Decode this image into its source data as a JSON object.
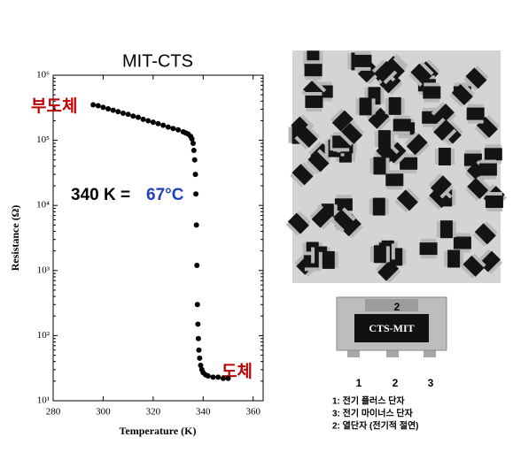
{
  "chart_data": {
    "type": "scatter",
    "title": "MIT-CTS",
    "x_label": "Temperature (K)",
    "y_label": "Resistance (Ω)",
    "x": [
      296,
      298,
      300,
      302,
      304,
      306,
      308,
      310,
      312,
      314,
      316,
      318,
      320,
      322,
      324,
      326,
      328,
      330,
      332,
      333,
      334,
      335,
      335.5,
      336,
      336.3,
      336.6,
      336.9,
      337.1,
      337.3,
      337.5,
      337.7,
      337.9,
      338.1,
      338.3,
      338.6,
      339,
      339.5,
      340,
      341,
      342,
      344,
      346,
      348,
      350
    ],
    "values": [
      350000,
      340000,
      320000,
      305000,
      290000,
      275000,
      260000,
      250000,
      235000,
      225000,
      210000,
      200000,
      190000,
      180000,
      170000,
      160000,
      152000,
      145000,
      135000,
      130000,
      125000,
      115000,
      105000,
      90000,
      70000,
      50000,
      30000,
      15000,
      5000,
      1200,
      300,
      150,
      90,
      60,
      45,
      35,
      30,
      27,
      25,
      24,
      23,
      23,
      22,
      22
    ],
    "color": "#000000",
    "log_y": true,
    "xlim": [
      280,
      364
    ],
    "xticks": [
      280,
      300,
      320,
      340,
      360
    ],
    "ylim": [
      10,
      1000000
    ],
    "yticks": [
      {
        "value": 10,
        "label": "10¹"
      },
      {
        "value": 100,
        "label": "10²"
      },
      {
        "value": 1000,
        "label": "10³"
      },
      {
        "value": 10000,
        "label": "10⁴"
      },
      {
        "value": 100000,
        "label": "10⁵"
      },
      {
        "value": 1000000,
        "label": "10⁶"
      }
    ],
    "annotations": [
      {
        "text": "부도체",
        "color": "#c00000"
      },
      {
        "text": "도체",
        "color": "#c00000"
      },
      {
        "text": "340 K =",
        "color": "#000000"
      },
      {
        "text": "67°C",
        "color": "#1f3fbf"
      }
    ]
  },
  "component": {
    "body_label": "CTS-MIT",
    "pin_labels": [
      "2",
      "1",
      "2",
      "3"
    ],
    "legend": [
      "1: 전기 플러스 단자",
      "3: 전기 마이너스 단자",
      "2: 열단자 (전기적 절연)"
    ]
  }
}
